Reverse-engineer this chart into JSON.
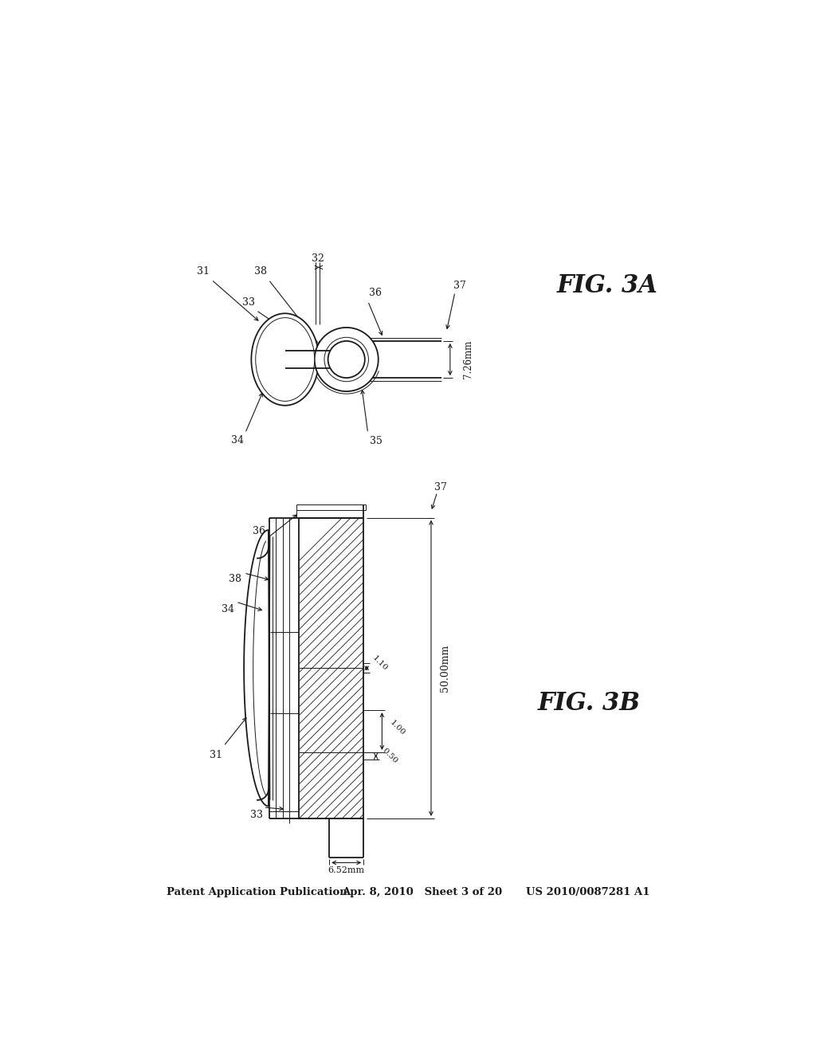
{
  "bg_color": "#ffffff",
  "line_color": "#1a1a1a",
  "title_left": "Patent Application Publication",
  "title_mid": "Apr. 8, 2010   Sheet 3 of 20",
  "title_right": "US 2010/0087281 A1",
  "fig3b_label": "FIG. 3B",
  "fig3a_label": "FIG. 3A",
  "dim_652": "6.52mm",
  "dim_50": "50.00mm",
  "dim_726": "7.26mm",
  "dim_050": "0.50",
  "dim_100": "1.00",
  "dim_110": "1.10"
}
